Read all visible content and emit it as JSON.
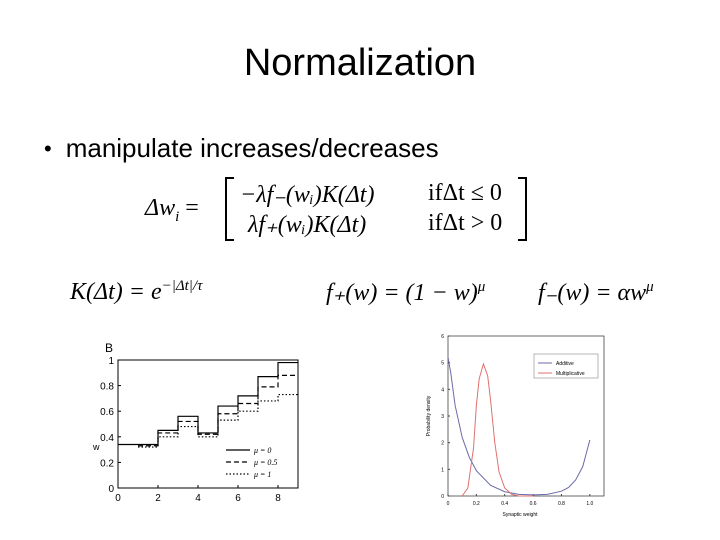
{
  "slide": {
    "title": "Normalization",
    "bullet": "manipulate increases/decreases"
  },
  "equations": {
    "delta_w_lhs": "Δw",
    "delta_w_sub": "i",
    "row1_expr": "−λf₋(wᵢ)K(Δt)",
    "row1_cond": "ifΔt ≤ 0",
    "row2_expr": "λf₊(wᵢ)K(Δt)",
    "row2_cond": "ifΔt > 0",
    "kernel": "K(Δt) = e",
    "kernel_exp": "−|Δt|/τ",
    "f_plus": "f₊(w) = (1 − w)",
    "f_plus_exp": "μ",
    "f_minus": "f₋(w) = αw",
    "f_minus_exp": "μ"
  },
  "chart_data": [
    {
      "type": "line",
      "panel_label": "B",
      "ylabel": "w",
      "xlabel": "",
      "x_ticks": [
        "0",
        "2",
        "4",
        "6",
        "8"
      ],
      "y_ticks": [
        "0",
        "0.2",
        "0.4",
        "0.6",
        "0.8",
        "1"
      ],
      "xlim": [
        0,
        9
      ],
      "ylim": [
        0,
        1
      ],
      "series": [
        {
          "name": "μ = 0",
          "style": "solid",
          "x": [
            0,
            1,
            1,
            2,
            2,
            3,
            3,
            4,
            4,
            5,
            5,
            6,
            6,
            7,
            7,
            8,
            8,
            9
          ],
          "y": [
            0.34,
            0.34,
            0.34,
            0.34,
            0.45,
            0.45,
            0.56,
            0.56,
            0.43,
            0.43,
            0.64,
            0.64,
            0.72,
            0.72,
            0.87,
            0.87,
            0.98,
            0.98
          ]
        },
        {
          "name": "μ = 0.5",
          "style": "dashed",
          "x": [
            1,
            2,
            2,
            3,
            3,
            4,
            4,
            5,
            5,
            6,
            6,
            7,
            7,
            8,
            8,
            9
          ],
          "y": [
            0.33,
            0.33,
            0.43,
            0.43,
            0.52,
            0.52,
            0.42,
            0.42,
            0.58,
            0.58,
            0.66,
            0.66,
            0.79,
            0.79,
            0.88,
            0.88
          ]
        },
        {
          "name": "μ = 1",
          "style": "dotted",
          "x": [
            1,
            2,
            2,
            3,
            3,
            4,
            4,
            5,
            5,
            6,
            6,
            7,
            7,
            8,
            8,
            9
          ],
          "y": [
            0.32,
            0.32,
            0.4,
            0.4,
            0.48,
            0.48,
            0.4,
            0.4,
            0.53,
            0.53,
            0.6,
            0.6,
            0.68,
            0.68,
            0.73,
            0.73
          ]
        }
      ]
    },
    {
      "type": "line",
      "ylabel": "Probability density",
      "xlabel": "Synaptic weight",
      "x_ticks": [
        "0",
        "0.2",
        "0.4",
        "0.6",
        "0.8",
        "1.0"
      ],
      "y_ticks": [
        "0",
        "1",
        "2",
        "3",
        "4",
        "5",
        "6"
      ],
      "xlim": [
        0,
        1.1
      ],
      "ylim": [
        0,
        6
      ],
      "series": [
        {
          "name": "Additive",
          "color": "#6a6aa8",
          "x": [
            0,
            0.02,
            0.05,
            0.1,
            0.15,
            0.2,
            0.3,
            0.4,
            0.5,
            0.6,
            0.7,
            0.8,
            0.85,
            0.9,
            0.95,
            0.97,
            0.99,
            1.0
          ],
          "y": [
            5.2,
            4.6,
            3.4,
            2.2,
            1.45,
            0.95,
            0.4,
            0.16,
            0.06,
            0.04,
            0.06,
            0.18,
            0.32,
            0.6,
            1.1,
            1.5,
            1.9,
            2.1
          ]
        },
        {
          "name": "Multiplicative",
          "color": "#e07070",
          "x": [
            0.1,
            0.14,
            0.18,
            0.2,
            0.22,
            0.25,
            0.28,
            0.3,
            0.33,
            0.36,
            0.4,
            0.45,
            0.5,
            0.6
          ],
          "y": [
            0,
            0.3,
            1.8,
            3.4,
            4.4,
            4.95,
            4.5,
            3.6,
            2.0,
            0.9,
            0.3,
            0.06,
            0,
            0
          ]
        }
      ]
    }
  ],
  "colors": {
    "additive": "#6a6aa8",
    "multiplicative": "#e07070"
  }
}
